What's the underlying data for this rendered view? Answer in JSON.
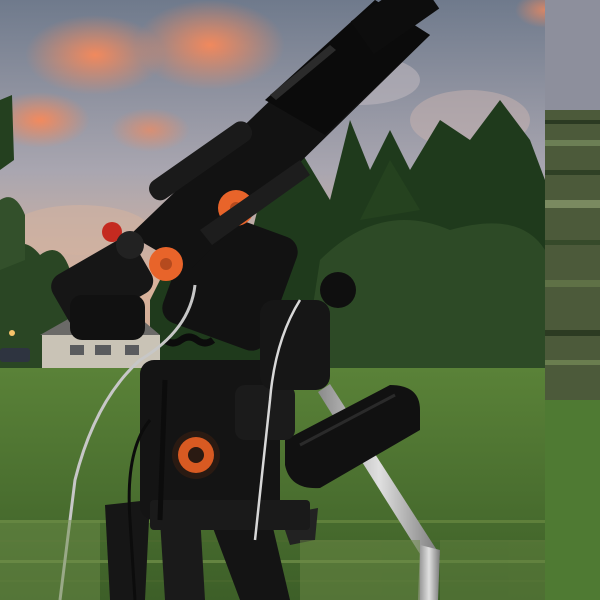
{
  "scene": {
    "subject": "telescope-on-equatorial-mount",
    "setting": "backyard-lawn-at-sunset"
  },
  "colors": {
    "sky_top": "#6f7a8c",
    "sky_mid": "#a9a6b0",
    "sky_low": "#d9a58c",
    "cloud_glow": "#f08a5c",
    "trees_dark": "#1f3a1c",
    "trees_mid": "#2d4a26",
    "grass": "#4f7a33",
    "grass_dark": "#3d5f28",
    "scope_black": "#141414",
    "knob_orange": "#e8642a",
    "steel": "#b9b9b9",
    "house": "#c9c3b6"
  }
}
